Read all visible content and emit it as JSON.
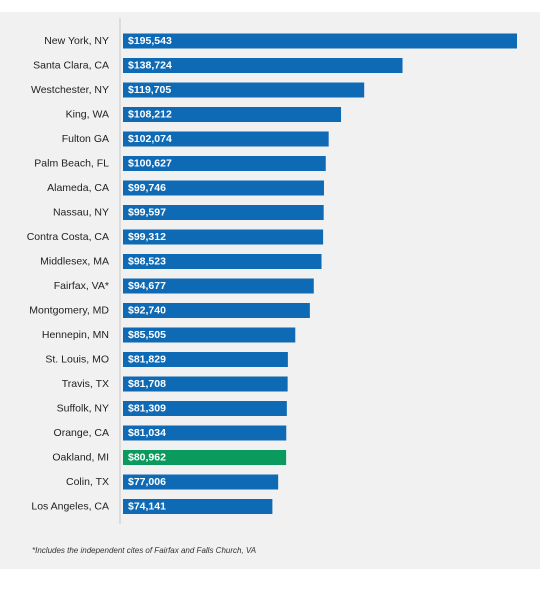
{
  "chart_data": {
    "type": "bar",
    "orientation": "horizontal",
    "categories": [
      "New York, NY",
      "Santa Clara, CA",
      "Westchester, NY",
      "King, WA",
      "Fulton GA",
      "Palm Beach, FL",
      "Alameda, CA",
      "Nassau, NY",
      "Contra Costa, CA",
      "Middlesex, MA",
      "Fairfax, VA*",
      "Montgomery, MD",
      "Hennepin, MN",
      "St. Louis, MO",
      "Travis, TX",
      "Suffolk, NY",
      "Orange, CA",
      "Oakland, MI",
      "Colin, TX",
      "Los Angeles, CA"
    ],
    "values": [
      195543,
      138724,
      119705,
      108212,
      102074,
      100627,
      99746,
      99597,
      99312,
      98523,
      94677,
      92740,
      85505,
      81829,
      81708,
      81309,
      81034,
      80962,
      77006,
      74141
    ],
    "data_labels": [
      "$195,543",
      "$138,724",
      "$119,705",
      "$108,212",
      "$102,074",
      "$100,627",
      "$99,746",
      "$99,597",
      "$99,312",
      "$98,523",
      "$94,677",
      "$92,740",
      "$85,505",
      "$81,829",
      "$81,708",
      "$81,309",
      "$81,034",
      "$80,962",
      "$77,006",
      "$74,141"
    ],
    "highlight": "Oakland, MI",
    "colors": {
      "bar": "#0f6ab5",
      "highlight": "#0b9a5e",
      "panel": "#f1f1f1",
      "axis": "#c8c8c8"
    },
    "title": "",
    "xlabel": "",
    "ylabel": "",
    "xlim": [
      0,
      195543
    ],
    "grid": false,
    "legend": "none"
  },
  "footnote": "*Includes the independent cites of Fairfax and Falls Church, VA"
}
